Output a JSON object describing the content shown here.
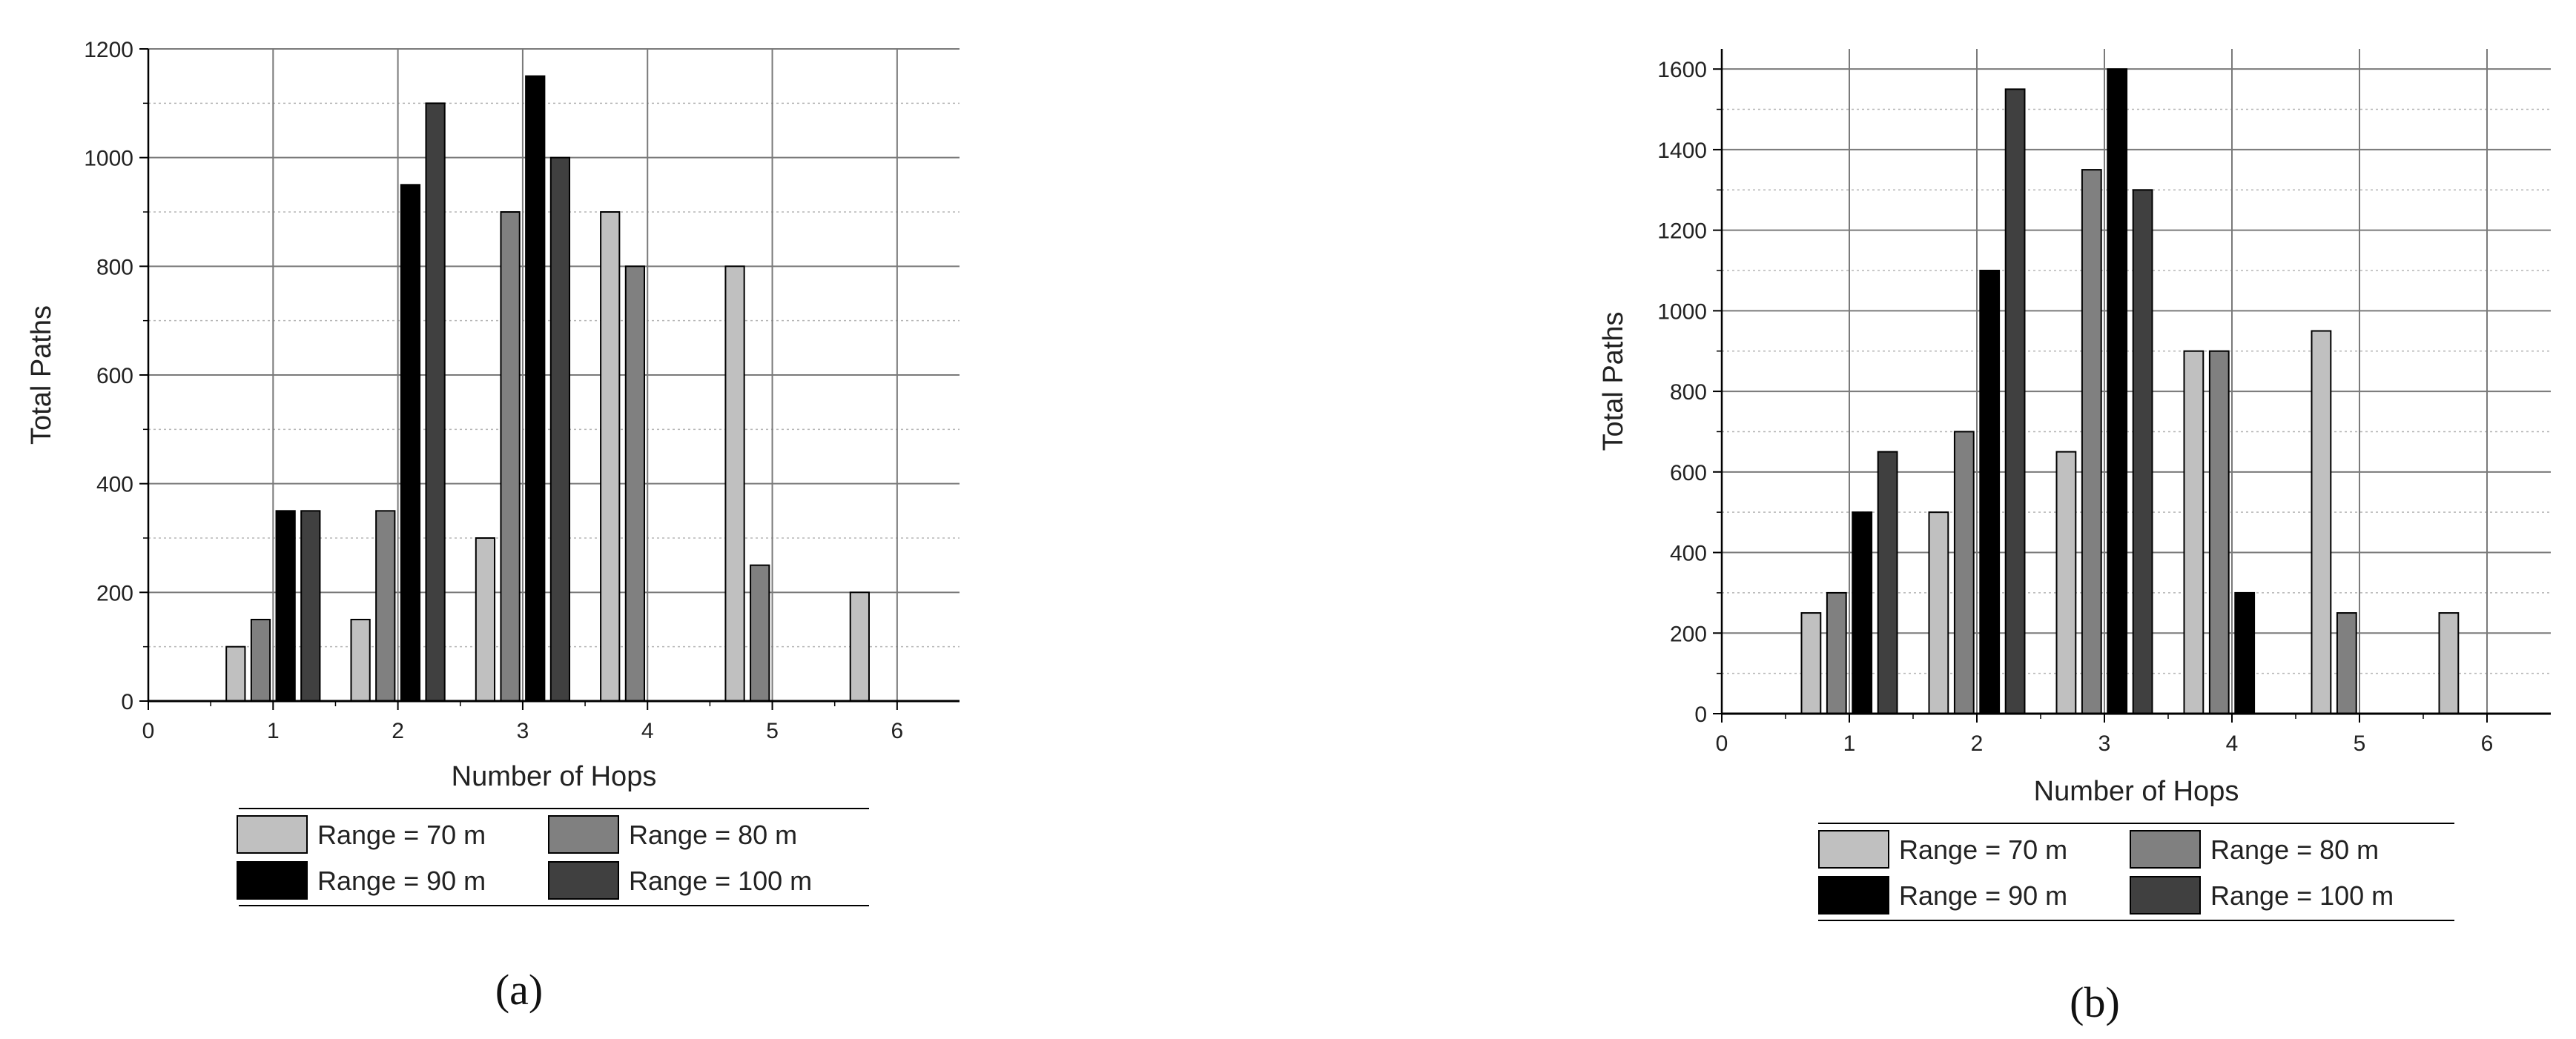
{
  "colors": {
    "series": [
      "#c0c0c0",
      "#808080",
      "#000000",
      "#404040"
    ],
    "grid_major": "#7a7a7a",
    "grid_minor": "#b5b5b5",
    "axis": "#000000"
  },
  "chart_data": [
    {
      "type": "bar",
      "panel_label": "(a)",
      "xlabel": "Number of Hops",
      "ylabel": "Total Paths",
      "xlim": [
        0,
        6.5
      ],
      "ylim": [
        0,
        1200
      ],
      "x_ticks": [
        0,
        1,
        2,
        3,
        4,
        5,
        6
      ],
      "y_ticks": [
        0,
        200,
        400,
        600,
        800,
        1000,
        1200
      ],
      "grid": true,
      "legend_position": "bottom",
      "categories": [
        1,
        2,
        3,
        4,
        5,
        6
      ],
      "series": [
        {
          "name": "Range = 70 m",
          "values": [
            100,
            150,
            300,
            900,
            800,
            200
          ]
        },
        {
          "name": "Range = 80 m",
          "values": [
            150,
            350,
            900,
            800,
            250,
            0
          ]
        },
        {
          "name": "Range = 90 m",
          "values": [
            350,
            950,
            1150,
            0,
            0,
            0
          ]
        },
        {
          "name": "Range = 100 m",
          "values": [
            350,
            1100,
            1000,
            0,
            0,
            0
          ]
        }
      ]
    },
    {
      "type": "bar",
      "panel_label": "(b)",
      "xlabel": "Number of Hops",
      "ylabel": "Total Paths",
      "xlim": [
        0,
        6.5
      ],
      "ylim": [
        0,
        1650
      ],
      "x_ticks": [
        0,
        1,
        2,
        3,
        4,
        5,
        6
      ],
      "y_ticks": [
        0,
        200,
        400,
        600,
        800,
        1000,
        1200,
        1400,
        1600
      ],
      "grid": true,
      "legend_position": "bottom",
      "categories": [
        1,
        2,
        3,
        4,
        5,
        6
      ],
      "series": [
        {
          "name": "Range = 70 m",
          "values": [
            250,
            500,
            650,
            900,
            950,
            250
          ]
        },
        {
          "name": "Range = 80 m",
          "values": [
            300,
            700,
            1350,
            900,
            250,
            0
          ]
        },
        {
          "name": "Range = 90 m",
          "values": [
            500,
            1100,
            1600,
            300,
            0,
            0
          ]
        },
        {
          "name": "Range = 100 m",
          "values": [
            650,
            1550,
            1300,
            0,
            0,
            0
          ]
        }
      ]
    }
  ]
}
